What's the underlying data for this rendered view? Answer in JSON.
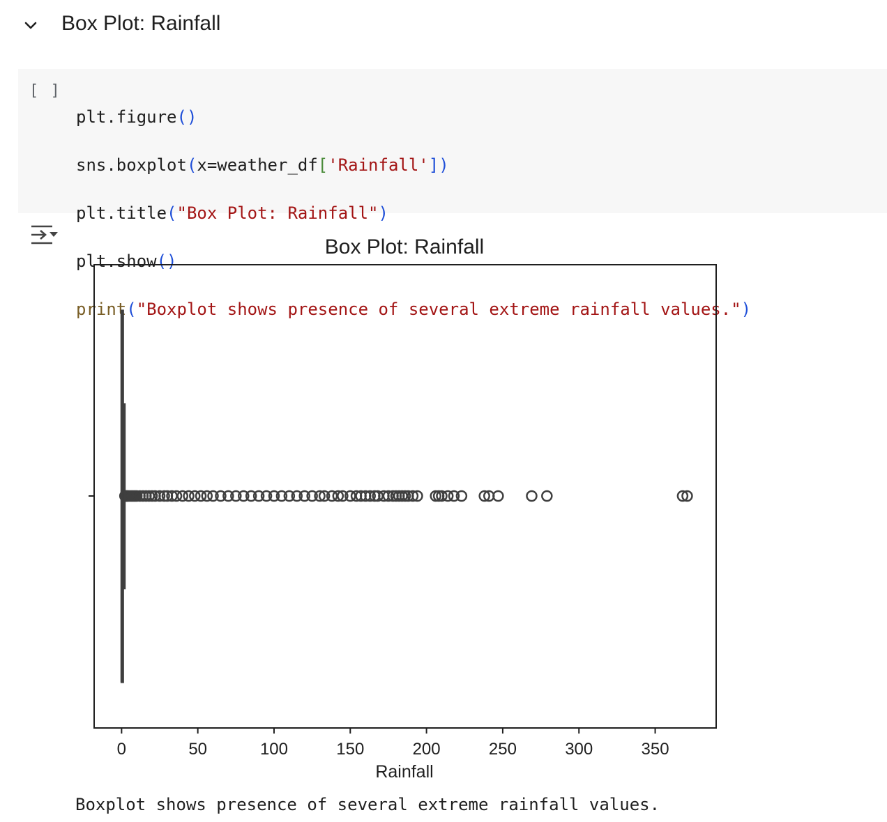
{
  "section": {
    "title": "Box Plot: Rainfall",
    "collapse_icon": "chevron-down-icon"
  },
  "cell": {
    "run_label": "[ ]",
    "code_lines": [
      "plt.figure()",
      "sns.boxplot(x=weather_df['Rainfall'])",
      "plt.title(\"Box Plot: Rainfall\")",
      "plt.show()",
      "print(\"Boxplot shows presence of several extreme rainfall values.\")"
    ]
  },
  "output": {
    "toggle_icon": "output-collapse-icon",
    "stdout": "Boxplot shows presence of several extreme rainfall values."
  },
  "chart_data": {
    "type": "box",
    "title": "Box Plot: Rainfall",
    "xlabel": "Rainfall",
    "ylabel": "",
    "xlim": [
      -18,
      390
    ],
    "xticks": [
      0,
      50,
      100,
      150,
      200,
      250,
      300,
      350
    ],
    "orientation": "horizontal",
    "grid": false,
    "box": {
      "q1": 0,
      "median": 0,
      "q3": 0.8,
      "whisker_low": 0,
      "whisker_high": 2.0
    },
    "outliers": [
      2.2,
      2.6,
      3.0,
      3.5,
      4.0,
      5,
      6,
      7,
      8,
      9,
      10,
      12,
      14,
      16,
      18,
      20,
      22,
      25,
      28,
      30,
      33,
      36,
      40,
      44,
      48,
      52,
      56,
      60,
      65,
      70,
      75,
      80,
      85,
      90,
      95,
      100,
      105,
      110,
      115,
      120,
      125,
      130,
      133,
      138,
      142,
      145,
      150,
      154,
      157,
      160,
      163,
      166,
      168,
      172,
      175,
      178,
      180,
      182,
      184,
      186,
      188,
      191,
      194,
      206,
      208,
      210,
      214,
      218,
      223,
      238,
      241,
      247,
      269,
      279,
      368,
      371
    ],
    "colors": {
      "box_line": "#3f3f3f",
      "box_fill": "#1f77b4"
    }
  }
}
